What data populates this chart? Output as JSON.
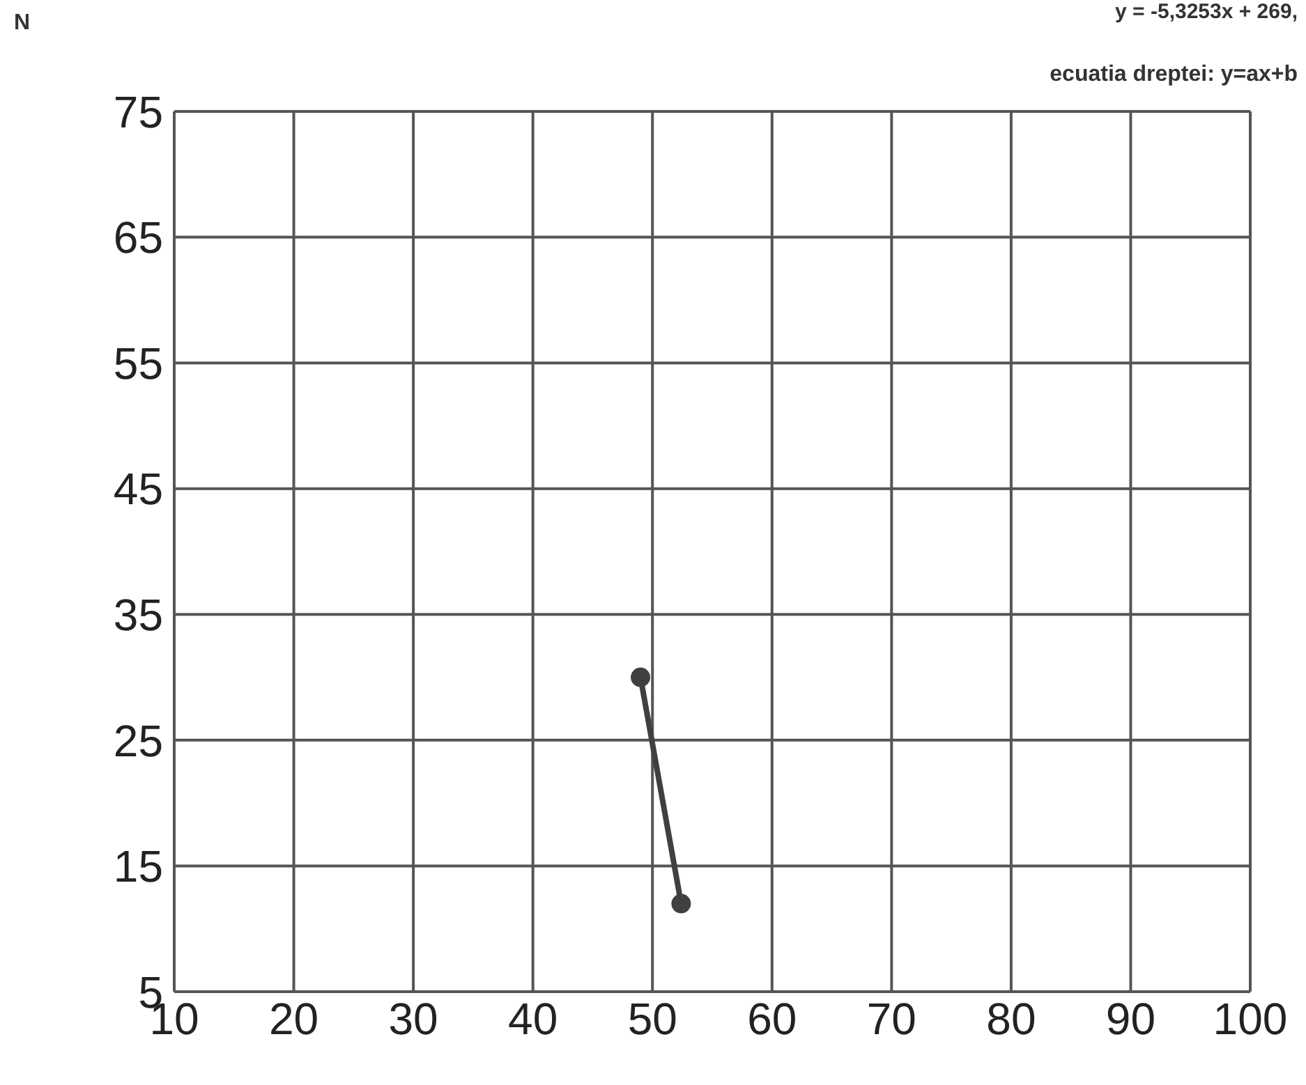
{
  "chart_data": {
    "type": "line",
    "ylabel": "N",
    "annotations": [
      "y = -5,3253x + 269,",
      "ecuatia dreptei:  y=ax+b"
    ],
    "x": [
      49,
      52.4
    ],
    "series": [
      {
        "color": "#404040",
        "values": [
          30,
          12
        ]
      }
    ],
    "xlim": [
      10,
      100
    ],
    "xticks": [
      10,
      20,
      30,
      40,
      50,
      60,
      70,
      80,
      90,
      100
    ],
    "ylim": [
      5,
      75
    ],
    "yticks": [
      5,
      15,
      25,
      35,
      45,
      55,
      65,
      75
    ],
    "grid": true,
    "marker": "circle",
    "line_style": "solid",
    "legend": false
  }
}
